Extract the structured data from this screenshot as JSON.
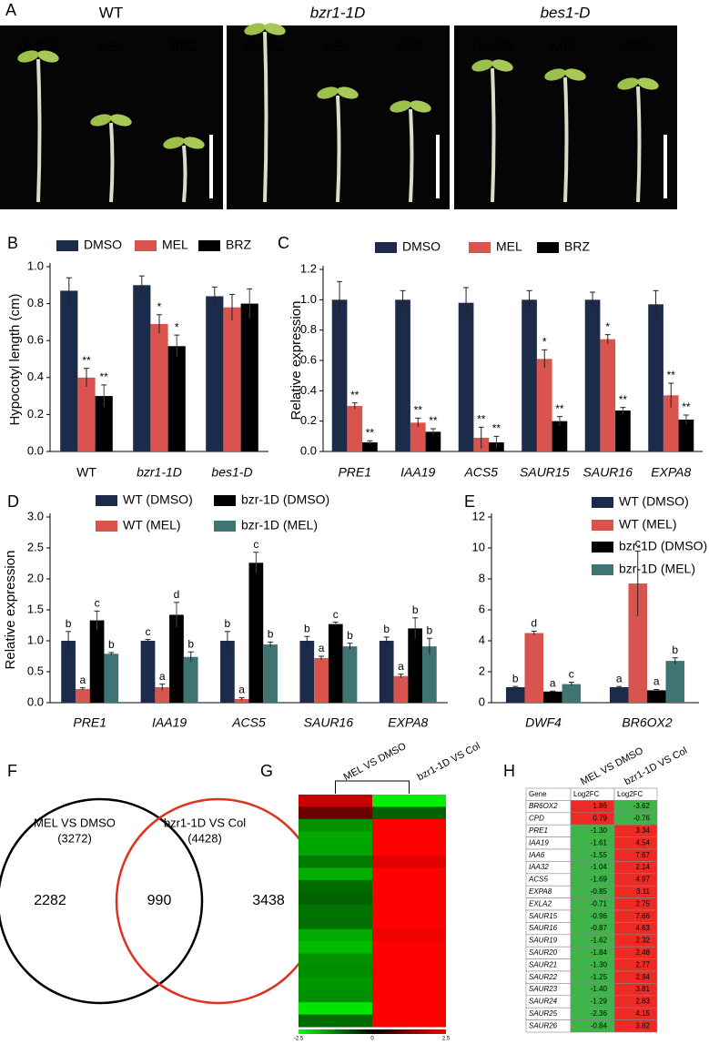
{
  "photos": {
    "label": "A",
    "groups": [
      {
        "title": "WT",
        "treatments": [
          "DMSO",
          "MEL",
          "BRZ"
        ]
      },
      {
        "title": "bzr1-1D",
        "treatments": [
          "DMSO",
          "MEL",
          "BRZ"
        ]
      },
      {
        "title": "bes1-D",
        "treatments": [
          "DMSO",
          "MEL",
          "BRZ"
        ]
      }
    ]
  },
  "chart_data": [
    {
      "label": "B",
      "type": "bar",
      "ylabel": "Hypocotyl length (cm)",
      "categories": [
        "WT",
        "bzr1-1D",
        "bes1-D"
      ],
      "ylim": [
        0,
        1
      ],
      "yticks": [
        {
          "value": 0,
          "label": "0.0"
        },
        0.2,
        0.4,
        0.6,
        0.8,
        {
          "value": 1,
          "label": "1.0"
        }
      ],
      "series": [
        {
          "name": "DMSO",
          "color": "#1c2b4a",
          "values": [
            0.87,
            0.9,
            0.84
          ],
          "errors": [
            0.07,
            0.05,
            0.05
          ],
          "significance": [
            null,
            null,
            null
          ]
        },
        {
          "name": "MEL",
          "color": "#d9534f",
          "values": [
            0.4,
            0.69,
            0.78
          ],
          "errors": [
            0.05,
            0.05,
            0.07
          ],
          "significance": [
            "**",
            "*",
            null
          ]
        },
        {
          "name": "BRZ",
          "color": "#000000",
          "values": [
            0.3,
            0.57,
            0.8
          ],
          "errors": [
            0.06,
            0.06,
            0.08
          ],
          "significance": [
            "**",
            "*",
            null
          ]
        }
      ]
    },
    {
      "label": "C",
      "type": "bar",
      "ylabel": "Relative expression",
      "categories": [
        "PRE1",
        "IAA19",
        "ACS5",
        "SAUR15",
        "SAUR16",
        "EXPA8"
      ],
      "ylim": [
        0,
        1.2
      ],
      "yticks": [
        {
          "value": 0,
          "label": "0.0"
        },
        0.2,
        0.4,
        0.6,
        0.8,
        {
          "value": 1,
          "label": "1.0"
        },
        1.2
      ],
      "series": [
        {
          "name": "DMSO",
          "color": "#1c2b4a",
          "values": [
            1.0,
            1.0,
            0.98,
            1.0,
            1.0,
            0.97
          ],
          "errors": [
            0.12,
            0.06,
            0.1,
            0.06,
            0.05,
            0.09
          ],
          "significance": [
            null,
            null,
            null,
            null,
            null,
            null
          ]
        },
        {
          "name": "MEL",
          "color": "#d9534f",
          "values": [
            0.3,
            0.19,
            0.09,
            0.61,
            0.74,
            0.37
          ],
          "errors": [
            0.02,
            0.03,
            0.07,
            0.06,
            0.03,
            0.08
          ],
          "significance": [
            "**",
            "**",
            "**",
            "*",
            "*",
            "**"
          ]
        },
        {
          "name": "BRZ",
          "color": "#000000",
          "values": [
            0.06,
            0.13,
            0.06,
            0.2,
            0.27,
            0.21
          ],
          "errors": [
            0.01,
            0.02,
            0.04,
            0.03,
            0.02,
            0.03
          ],
          "significance": [
            "**",
            "**",
            "**",
            "**",
            "**",
            "**"
          ]
        }
      ]
    },
    {
      "label": "D",
      "type": "bar",
      "ylabel": "Relative expression",
      "categories": [
        "PRE1",
        "IAA19",
        "ACS5",
        "SAUR16",
        "EXPA8"
      ],
      "ylim": [
        0,
        3
      ],
      "yticks": [
        {
          "value": 0,
          "label": "0.0"
        },
        0.5,
        {
          "value": 1,
          "label": "1.0"
        },
        1.5,
        {
          "value": 2,
          "label": "2.0"
        },
        2.5,
        {
          "value": 3,
          "label": "3.0"
        }
      ],
      "series": [
        {
          "name": "WT (DMSO)",
          "color": "#1c2b4a",
          "values": [
            1.0,
            1.0,
            1.0,
            1.0,
            1.0
          ],
          "errors": [
            0.15,
            0.02,
            0.15,
            0.07,
            0.06
          ],
          "significance": [
            "b",
            "c",
            "b",
            "b",
            "b"
          ]
        },
        {
          "name": "WT (MEL)",
          "color": "#d9534f",
          "values": [
            0.22,
            0.25,
            0.06,
            0.72,
            0.43
          ],
          "errors": [
            0.02,
            0.05,
            0.02,
            0.03,
            0.03
          ],
          "significance": [
            "a",
            "a",
            "a",
            "a",
            "a"
          ]
        },
        {
          "name": "bzr-1D (DMSO)",
          "color": "#000000",
          "values": [
            1.33,
            1.42,
            2.26,
            1.27,
            1.2
          ],
          "errors": [
            0.15,
            0.2,
            0.17,
            0.03,
            0.17
          ],
          "significance": [
            "c",
            "d",
            "c",
            "c",
            "b"
          ]
        },
        {
          "name": "bzr-1D (MEL)",
          "color": "#3f7472",
          "values": [
            0.79,
            0.74,
            0.94,
            0.91,
            0.91
          ],
          "errors": [
            0.02,
            0.08,
            0.04,
            0.05,
            0.13
          ],
          "significance": [
            "b",
            "b",
            "b",
            "b",
            "b"
          ]
        }
      ]
    },
    {
      "label": "E",
      "type": "bar",
      "categories": [
        "DWF4",
        "BR6OX2"
      ],
      "ylim": [
        0,
        12
      ],
      "yticks": [
        0,
        2,
        4,
        6,
        8,
        10,
        12
      ],
      "series": [
        {
          "name": "WT (DMSO)",
          "color": "#1c2b4a",
          "values": [
            1.0,
            1.0
          ],
          "errors": [
            0.05,
            0.05
          ],
          "significance": [
            "b",
            "a"
          ]
        },
        {
          "name": "WT (MEL)",
          "color": "#d9534f",
          "values": [
            4.5,
            7.7
          ],
          "errors": [
            0.12,
            2.1
          ],
          "significance": [
            "d",
            "c"
          ]
        },
        {
          "name": "bzr-1D (DMSO)",
          "color": "#000000",
          "values": [
            0.72,
            0.8
          ],
          "errors": [
            0.03,
            0.05
          ],
          "significance": [
            "a",
            "a"
          ]
        },
        {
          "name": "bzr-1D (MEL)",
          "color": "#3f7472",
          "values": [
            1.2,
            2.7
          ],
          "errors": [
            0.12,
            0.2
          ],
          "significance": [
            "c",
            "b"
          ]
        }
      ]
    }
  ],
  "venn": {
    "label": "F",
    "sets": [
      {
        "name": "MEL VS DMSO",
        "count_label": "(3272)",
        "color": "#000000"
      },
      {
        "name": "bzr1-1D VS Col",
        "count_label": "(4428)",
        "color": "#e0301e"
      }
    ],
    "only_first": 2282,
    "overlap": 990,
    "only_second": 3438
  },
  "heatmap": {
    "label": "G",
    "columns": [
      "MEL VS DMSO",
      "bzr1-1D VS Col"
    ],
    "clim": [
      -2.5,
      2.5
    ],
    "colorbar_ticks": [
      -2.5,
      0,
      2.5
    ]
  },
  "table": {
    "label": "H",
    "columns": [
      "MEL VS DMSO",
      "bzr1-1D VS Col"
    ],
    "header": [
      "Gene",
      "Log2FC",
      "Log2FC"
    ],
    "rows": [
      [
        "BR6OX2",
        "1.86",
        "-3.62"
      ],
      [
        "CPD",
        "0.79",
        "-0.76"
      ],
      [
        "PRE1",
        "-1.30",
        "3.34"
      ],
      [
        "IAA19",
        "-1.61",
        "4.54"
      ],
      [
        "IAA6",
        "-1.55",
        "7.67"
      ],
      [
        "IAA32",
        "-1.04",
        "2.14"
      ],
      [
        "ACS5",
        "-1.69",
        "4.97"
      ],
      [
        "EXPA8",
        "-0.85",
        "3.11"
      ],
      [
        "EXLA2",
        "-0.71",
        "2.75"
      ],
      [
        "SAUR15",
        "-0.96",
        "7.66"
      ],
      [
        "SAUR16",
        "-0.87",
        "4.63"
      ],
      [
        "SAUR19",
        "-1.62",
        "2.32"
      ],
      [
        "SAUR20",
        "-1.84",
        "2.48"
      ],
      [
        "SAUR21",
        "-1.30",
        "2.77"
      ],
      [
        "SAUR22",
        "-1.25",
        "2.94"
      ],
      [
        "SAUR23",
        "-1.40",
        "3.81"
      ],
      [
        "SAUR24",
        "-1.29",
        "2.83"
      ],
      [
        "SAUR25",
        "-2.36",
        "4.15"
      ],
      [
        "SAUR26",
        "-0.84",
        "3.82"
      ]
    ]
  }
}
